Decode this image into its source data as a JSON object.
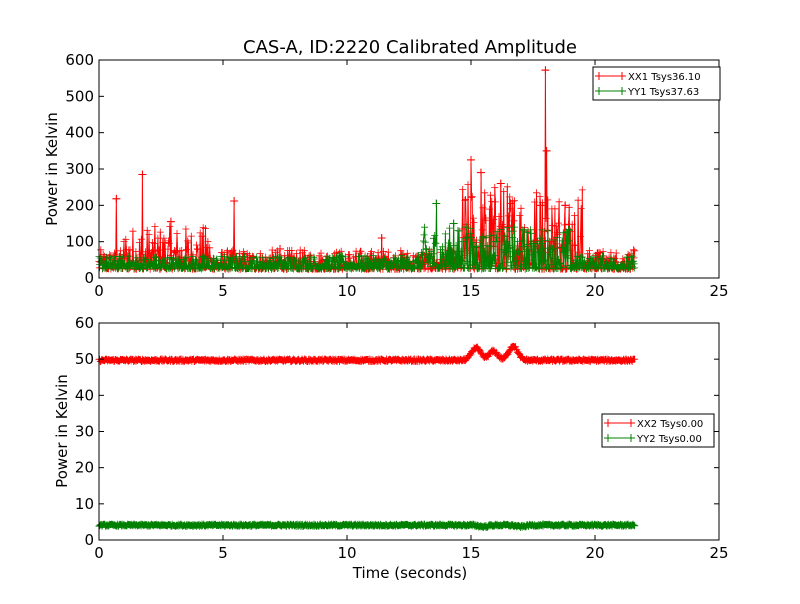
{
  "chart_data": [
    {
      "type": "line",
      "title": "CAS-A, ID:2220 Calibrated Amplitude",
      "xlabel": "",
      "ylabel": "Power in Kelvin",
      "xlim": [
        0,
        25
      ],
      "ylim": [
        0,
        600
      ],
      "xticks": [
        "0",
        "5",
        "10",
        "15",
        "20",
        "25"
      ],
      "yticks": [
        "0",
        "100",
        "200",
        "300",
        "400",
        "500",
        "600"
      ],
      "legend_position": "top-right",
      "x_end": 21.6,
      "series": [
        {
          "name": "XX1 Tsys36.10",
          "color": "#ff0000",
          "marker": "plus",
          "baseline": 36,
          "noise": 18,
          "spikes": [
            [
              0.7,
              218
            ],
            [
              1.75,
              285
            ],
            [
              2.9,
              155
            ],
            [
              5.45,
              212
            ],
            [
              7.3,
              80
            ],
            [
              11.4,
              110
            ],
            [
              15.0,
              325
            ],
            [
              15.4,
              290
            ],
            [
              16.2,
              260
            ],
            [
              16.6,
              205
            ],
            [
              17.8,
              200
            ],
            [
              18.0,
              572
            ],
            [
              18.05,
              350
            ],
            [
              18.8,
              200
            ],
            [
              19.2,
              90
            ],
            [
              20.1,
              68
            ]
          ]
        },
        {
          "name": "YY1 Tsys37.63",
          "color": "#008000",
          "marker": "plus",
          "baseline": 38,
          "noise": 12,
          "spikes": [
            [
              13.6,
              205
            ],
            [
              14.3,
              150
            ],
            [
              14.8,
              140
            ],
            [
              15.5,
              110
            ],
            [
              16.0,
              100
            ],
            [
              17.5,
              95
            ],
            [
              18.3,
              80
            ]
          ]
        }
      ]
    },
    {
      "type": "line",
      "title": "",
      "xlabel": "Time (seconds)",
      "ylabel": "Power in Kelvin",
      "xlim": [
        0,
        25
      ],
      "ylim": [
        0,
        60
      ],
      "xticks": [
        "0",
        "5",
        "10",
        "15",
        "20",
        "25"
      ],
      "yticks": [
        "0",
        "10",
        "20",
        "30",
        "40",
        "50",
        "60"
      ],
      "legend_position": "center-right",
      "x_end": 21.6,
      "series": [
        {
          "name": "XX2 Tsys0.00",
          "color": "#ff0000",
          "marker": "plus",
          "baseline": 49.7,
          "noise": 0.35,
          "bumps": [
            [
              15.2,
              3.5
            ],
            [
              15.9,
              2.5
            ],
            [
              16.7,
              4.0
            ]
          ]
        },
        {
          "name": "YY2 Tsys0.00",
          "color": "#008000",
          "marker": "plus",
          "baseline": 4.1,
          "noise": 0.3,
          "bumps": [
            [
              15.5,
              -0.4
            ],
            [
              17.0,
              -0.4
            ]
          ]
        }
      ]
    }
  ]
}
